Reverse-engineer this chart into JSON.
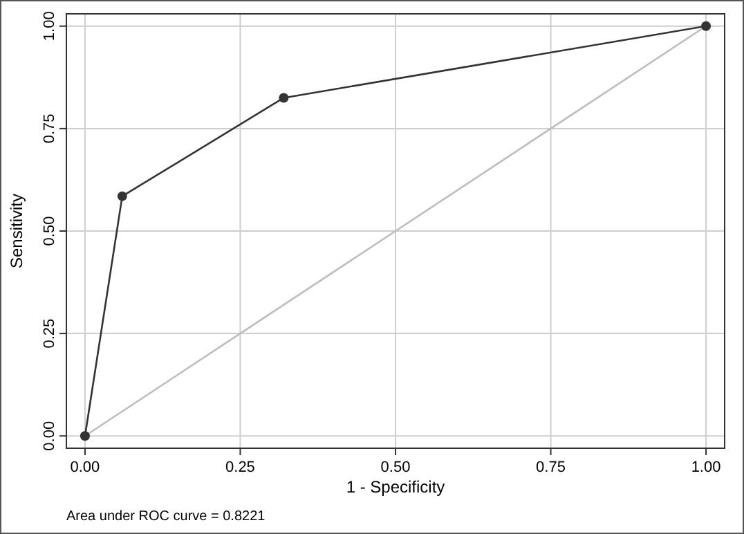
{
  "chart_data": {
    "type": "line",
    "xlabel": "1 - Specificity",
    "ylabel": "Sensitivity",
    "annotations": [
      "Area under ROC curve = 0.8221"
    ],
    "xlim": [
      -0.03,
      1.03
    ],
    "ylim": [
      -0.03,
      1.03
    ],
    "xticks": [
      {
        "value": 0,
        "label": "0.00"
      },
      {
        "value": 0.25,
        "label": "0.25"
      },
      {
        "value": 0.5,
        "label": "0.50"
      },
      {
        "value": 0.75,
        "label": "0.75"
      },
      {
        "value": 1,
        "label": "1.00"
      }
    ],
    "yticks": [
      {
        "value": 0,
        "label": "0.00"
      },
      {
        "value": 0.25,
        "label": "0.25"
      },
      {
        "value": 0.5,
        "label": "0.50"
      },
      {
        "value": 0.75,
        "label": "0.75"
      },
      {
        "value": 1,
        "label": "1.00"
      }
    ],
    "grid": true,
    "series": [
      {
        "x": [
          0,
          1
        ],
        "values": [
          0,
          1
        ],
        "color": "#bdbdbd",
        "marker": "none"
      },
      {
        "x": [
          0,
          0.06,
          0.32,
          1
        ],
        "values": [
          0,
          0.585,
          0.825,
          1
        ],
        "color": "#333333",
        "marker": "circle"
      }
    ]
  }
}
